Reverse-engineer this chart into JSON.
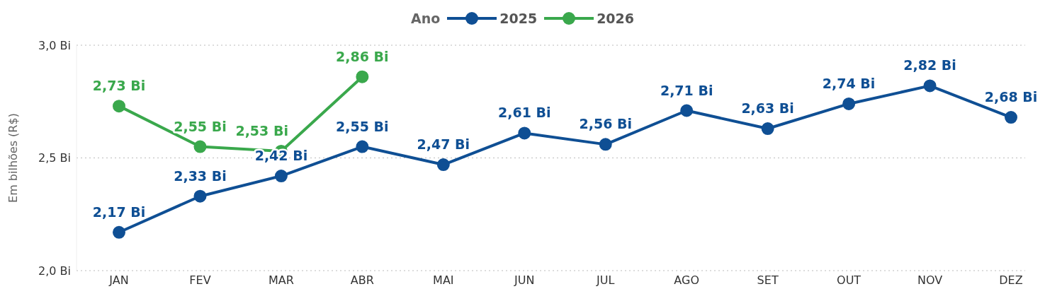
{
  "chart_data": {
    "type": "line",
    "ylabel": "Em bilhões (R$)",
    "legend_title": "Ano",
    "legend": "top",
    "grid": "y",
    "marker": "circle",
    "line_style": "solid",
    "categories": [
      "JAN",
      "FEV",
      "MAR",
      "ABR",
      "MAI",
      "JUN",
      "JUL",
      "AGO",
      "SET",
      "OUT",
      "NOV",
      "DEZ"
    ],
    "ylim": [
      2.0,
      3.0
    ],
    "yticks": [
      {
        "value": 2.0,
        "label": "2,0 Bi"
      },
      {
        "value": 2.5,
        "label": "2,5 Bi"
      },
      {
        "value": 3.0,
        "label": "3,0 Bi"
      }
    ],
    "series": [
      {
        "name": "2025",
        "color": "#0f4f94",
        "values": [
          2.17,
          2.33,
          2.42,
          2.55,
          2.47,
          2.61,
          2.56,
          2.71,
          2.63,
          2.74,
          2.82,
          2.68
        ],
        "value_labels": [
          "2,17 Bi",
          "2,33 Bi",
          "2,42 Bi",
          "2,55 Bi",
          "2,47 Bi",
          "2,61 Bi",
          "2,56 Bi",
          "2,71 Bi",
          "2,63 Bi",
          "2,74 Bi",
          "2,82 Bi",
          "2,68 Bi"
        ]
      },
      {
        "name": "2026",
        "color": "#3aa84c",
        "values": [
          2.73,
          2.55,
          2.53,
          2.86,
          null,
          null,
          null,
          null,
          null,
          null,
          null,
          null
        ],
        "value_labels": [
          "2,73 Bi",
          "2,55 Bi",
          "2,53 Bi",
          "2,86 Bi",
          null,
          null,
          null,
          null,
          null,
          null,
          null,
          null
        ]
      }
    ]
  }
}
